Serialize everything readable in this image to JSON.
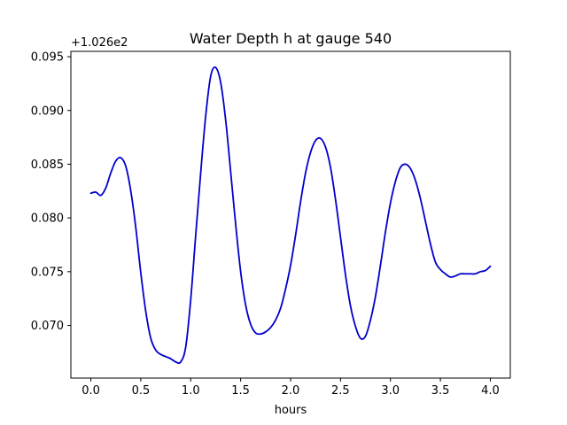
{
  "chart_data": {
    "type": "line",
    "title": "Water Depth h at gauge 540",
    "xlabel": "hours",
    "ylabel": "",
    "y_offset_label": "+1.026e2",
    "xlim": [
      -0.2,
      4.2
    ],
    "ylim": [
      0.0651,
      0.0955
    ],
    "xticks": [
      0.0,
      0.5,
      1.0,
      1.5,
      2.0,
      2.5,
      3.0,
      3.5,
      4.0
    ],
    "xtick_labels": [
      "0.0",
      "0.5",
      "1.0",
      "1.5",
      "2.0",
      "2.5",
      "3.0",
      "3.5",
      "4.0"
    ],
    "yticks": [
      0.07,
      0.075,
      0.08,
      0.085,
      0.09,
      0.095
    ],
    "ytick_labels": [
      "0.070",
      "0.075",
      "0.080",
      "0.085",
      "0.090",
      "0.095"
    ],
    "grid": false,
    "line_color": "#0000cc",
    "series": [
      {
        "x": [
          0.0,
          0.05,
          0.1,
          0.15,
          0.2,
          0.25,
          0.3,
          0.35,
          0.4,
          0.45,
          0.5,
          0.55,
          0.6,
          0.65,
          0.7,
          0.75,
          0.8,
          0.85,
          0.9,
          0.95,
          1.0,
          1.05,
          1.1,
          1.15,
          1.2,
          1.25,
          1.3,
          1.35,
          1.4,
          1.45,
          1.5,
          1.55,
          1.6,
          1.65,
          1.7,
          1.75,
          1.8,
          1.85,
          1.9,
          1.95,
          2.0,
          2.05,
          2.1,
          2.15,
          2.2,
          2.25,
          2.3,
          2.35,
          2.4,
          2.45,
          2.5,
          2.55,
          2.6,
          2.65,
          2.7,
          2.75,
          2.8,
          2.85,
          2.9,
          2.95,
          3.0,
          3.05,
          3.1,
          3.15,
          3.2,
          3.25,
          3.3,
          3.35,
          3.4,
          3.45,
          3.5,
          3.55,
          3.6,
          3.65,
          3.7,
          3.75,
          3.8,
          3.85,
          3.9,
          3.95,
          4.0
        ],
        "y": [
          0.0823,
          0.0824,
          0.0821,
          0.0828,
          0.0842,
          0.0853,
          0.0856,
          0.0848,
          0.0825,
          0.0791,
          0.0749,
          0.0713,
          0.0688,
          0.0677,
          0.0673,
          0.0671,
          0.0669,
          0.0666,
          0.0666,
          0.068,
          0.0724,
          0.0784,
          0.0842,
          0.0895,
          0.0932,
          0.094,
          0.0926,
          0.0891,
          0.0843,
          0.0794,
          0.075,
          0.0719,
          0.0701,
          0.0693,
          0.0692,
          0.0694,
          0.0698,
          0.0705,
          0.0716,
          0.0734,
          0.0756,
          0.0784,
          0.0815,
          0.0842,
          0.0861,
          0.0872,
          0.0874,
          0.0866,
          0.0847,
          0.0817,
          0.0782,
          0.0747,
          0.0718,
          0.0699,
          0.0688,
          0.069,
          0.0705,
          0.0727,
          0.0756,
          0.0787,
          0.0814,
          0.0834,
          0.0847,
          0.085,
          0.0846,
          0.0835,
          0.0818,
          0.0797,
          0.0776,
          0.0759,
          0.0752,
          0.0748,
          0.0745,
          0.0746,
          0.0748,
          0.0748,
          0.0748,
          0.0748,
          0.075,
          0.0751,
          0.0755
        ]
      }
    ]
  }
}
